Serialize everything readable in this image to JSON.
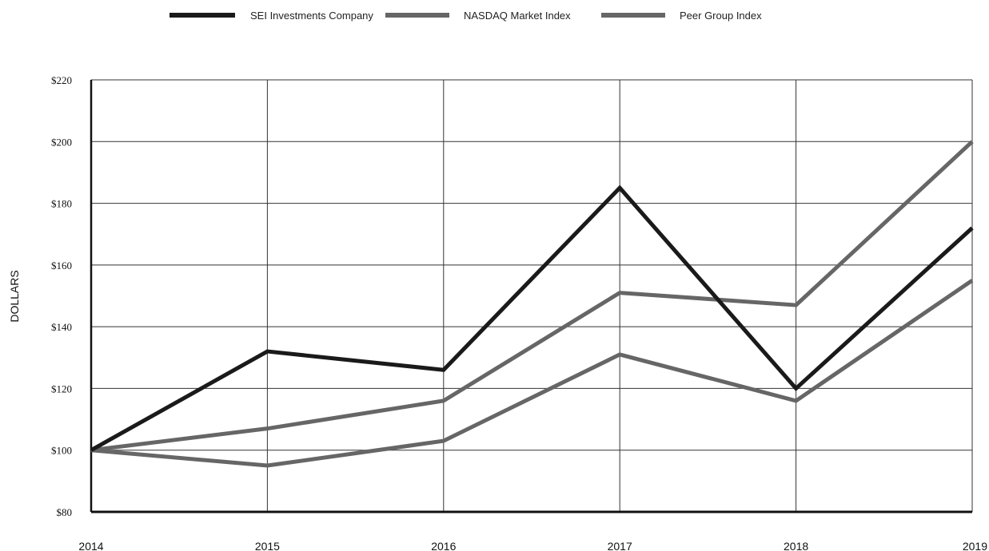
{
  "chart_data": {
    "type": "line",
    "title": "",
    "xlabel": "",
    "ylabel": "DOLLARS",
    "x": [
      "2014",
      "2015",
      "2016",
      "2017",
      "2018",
      "2019"
    ],
    "ylim": [
      80,
      220
    ],
    "yticks": [
      80,
      100,
      120,
      140,
      160,
      180,
      200,
      220
    ],
    "ytick_labels": [
      "$80",
      "$100",
      "$120",
      "$140",
      "$160",
      "$180",
      "$200",
      "$220"
    ],
    "grid": true,
    "legend_position": "top",
    "series": [
      {
        "name": "SEI Investments Company",
        "color": "#1a1a1a",
        "values": [
          100,
          132,
          126,
          185,
          120,
          172
        ]
      },
      {
        "name": "NASDAQ Market Index",
        "color": "#666666",
        "values": [
          100,
          107,
          116,
          151,
          147,
          200
        ]
      },
      {
        "name": "Peer Group Index",
        "color": "#666666",
        "values": [
          100,
          95,
          103,
          131,
          116,
          155
        ]
      }
    ]
  }
}
